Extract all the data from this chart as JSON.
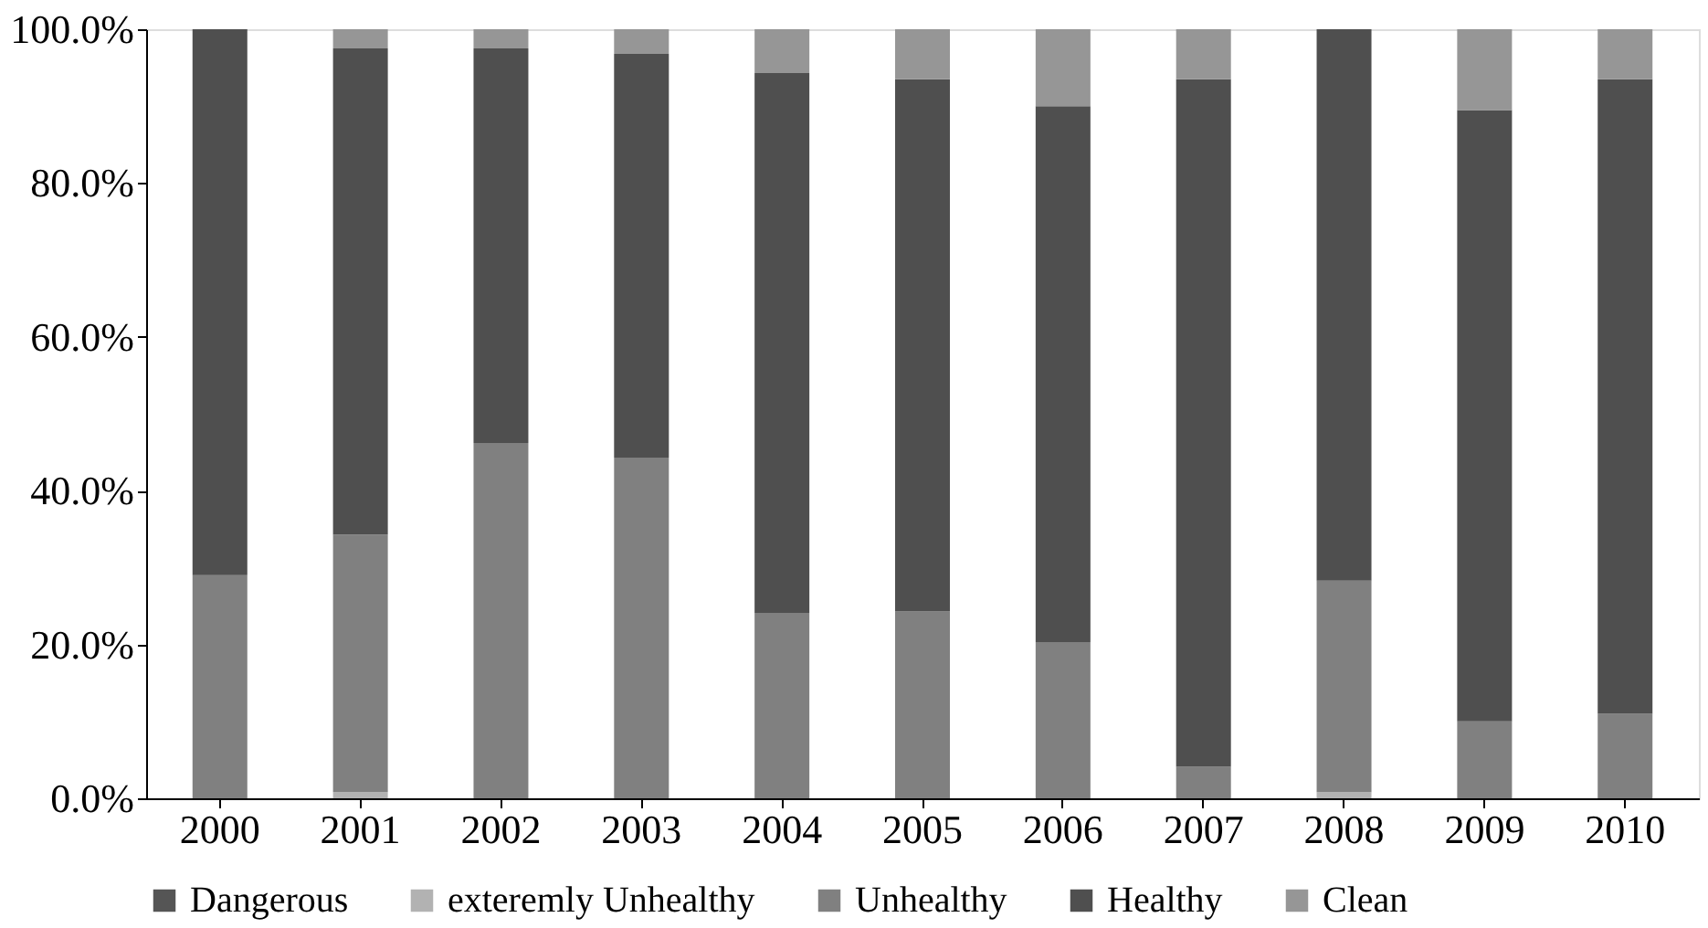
{
  "chart_data": {
    "type": "bar",
    "stacked": true,
    "categories": [
      "2000",
      "2001",
      "2002",
      "2003",
      "2004",
      "2005",
      "2006",
      "2007",
      "2008",
      "2009",
      "2010"
    ],
    "series": [
      {
        "name": "Dangerous",
        "color": "#555555",
        "values": [
          0,
          0,
          0,
          0,
          0,
          0,
          0,
          0,
          0,
          0,
          0
        ]
      },
      {
        "name": "exteremly Unhealthy",
        "color": "#b2b2b2",
        "values": [
          0,
          0.8,
          0,
          0,
          0,
          0,
          0,
          0,
          0.8,
          0,
          0
        ]
      },
      {
        "name": "Unhealthy",
        "color": "#808080",
        "values": [
          29,
          33.5,
          46.2,
          44.3,
          24.1,
          24.3,
          20.3,
          4.1,
          27.5,
          10,
          11
        ]
      },
      {
        "name": "Healthy",
        "color": "#4f4f4f",
        "values": [
          71,
          63.2,
          51.3,
          52.5,
          70.2,
          69.2,
          69.7,
          89.4,
          71.7,
          79.5,
          82.5
        ]
      },
      {
        "name": "Clean",
        "color": "#969696",
        "values": [
          0,
          2.5,
          2.5,
          3.2,
          5.7,
          6.5,
          10,
          6.5,
          0,
          10.5,
          6.5
        ]
      }
    ],
    "ylim": [
      0,
      100
    ],
    "yticks": [
      {
        "value": 0,
        "label": "0.0%"
      },
      {
        "value": 20,
        "label": "20.0%"
      },
      {
        "value": 40,
        "label": "40.0%"
      },
      {
        "value": 60,
        "label": "60.0%"
      },
      {
        "value": 80,
        "label": "80.0%"
      },
      {
        "value": 100,
        "label": "100.0%"
      }
    ],
    "grid": false,
    "legend": "bottom"
  }
}
